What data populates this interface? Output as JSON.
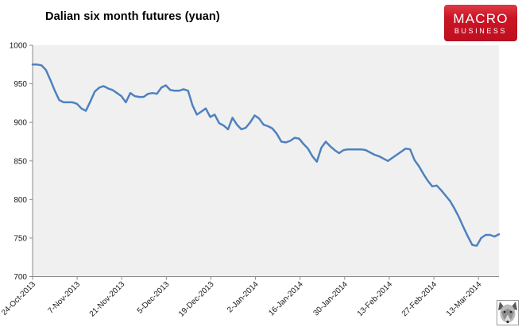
{
  "header": {
    "title": "Dalian six month futures (yuan)",
    "logo": {
      "line1": "MACRO",
      "line2": "BUSINESS"
    }
  },
  "chart_data": {
    "type": "line",
    "title": "Dalian six month futures (yuan)",
    "x_tick_labels": [
      "24-Oct-2013",
      "7-Nov-2013",
      "21-Nov-2013",
      "5-Dec-2013",
      "19-Dec-2013",
      "2-Jan-2014",
      "16-Jan-2014",
      "30-Jan-2014",
      "13-Feb-2014",
      "27-Feb-2014",
      "13-Mar-2014"
    ],
    "y_ticks": [
      1000,
      950,
      900,
      850,
      800,
      750,
      700
    ],
    "ylim": [
      700,
      1000
    ],
    "grid": "off",
    "legend": "none",
    "line_color": "#4f81bd",
    "plot_bg": "#f0f0f0",
    "axis_color": "#8a8a8a",
    "tick_label_color": "#1a1a1a",
    "values": [
      975,
      975,
      974,
      968,
      955,
      941,
      929,
      926,
      926,
      926,
      924,
      918,
      915,
      927,
      940,
      945,
      947,
      944,
      942,
      938,
      934,
      926,
      938,
      934,
      933,
      933,
      937,
      938,
      937,
      945,
      948,
      942,
      941,
      941,
      943,
      941,
      922,
      910,
      914,
      918,
      907,
      910,
      899,
      896,
      891,
      906,
      897,
      891,
      893,
      900,
      909,
      905,
      897,
      895,
      892,
      885,
      875,
      874,
      876,
      880,
      879,
      872,
      866,
      856,
      849,
      867,
      875,
      869,
      864,
      860,
      864,
      865,
      865,
      865,
      865,
      864,
      861,
      858,
      856,
      853,
      850,
      854,
      858,
      862,
      866,
      865,
      851,
      843,
      833,
      824,
      817,
      818,
      812,
      805,
      798,
      788,
      777,
      764,
      752,
      741,
      740,
      750,
      754,
      754,
      752,
      755
    ]
  },
  "footer": {
    "wolf_icon": "wolf-icon"
  }
}
